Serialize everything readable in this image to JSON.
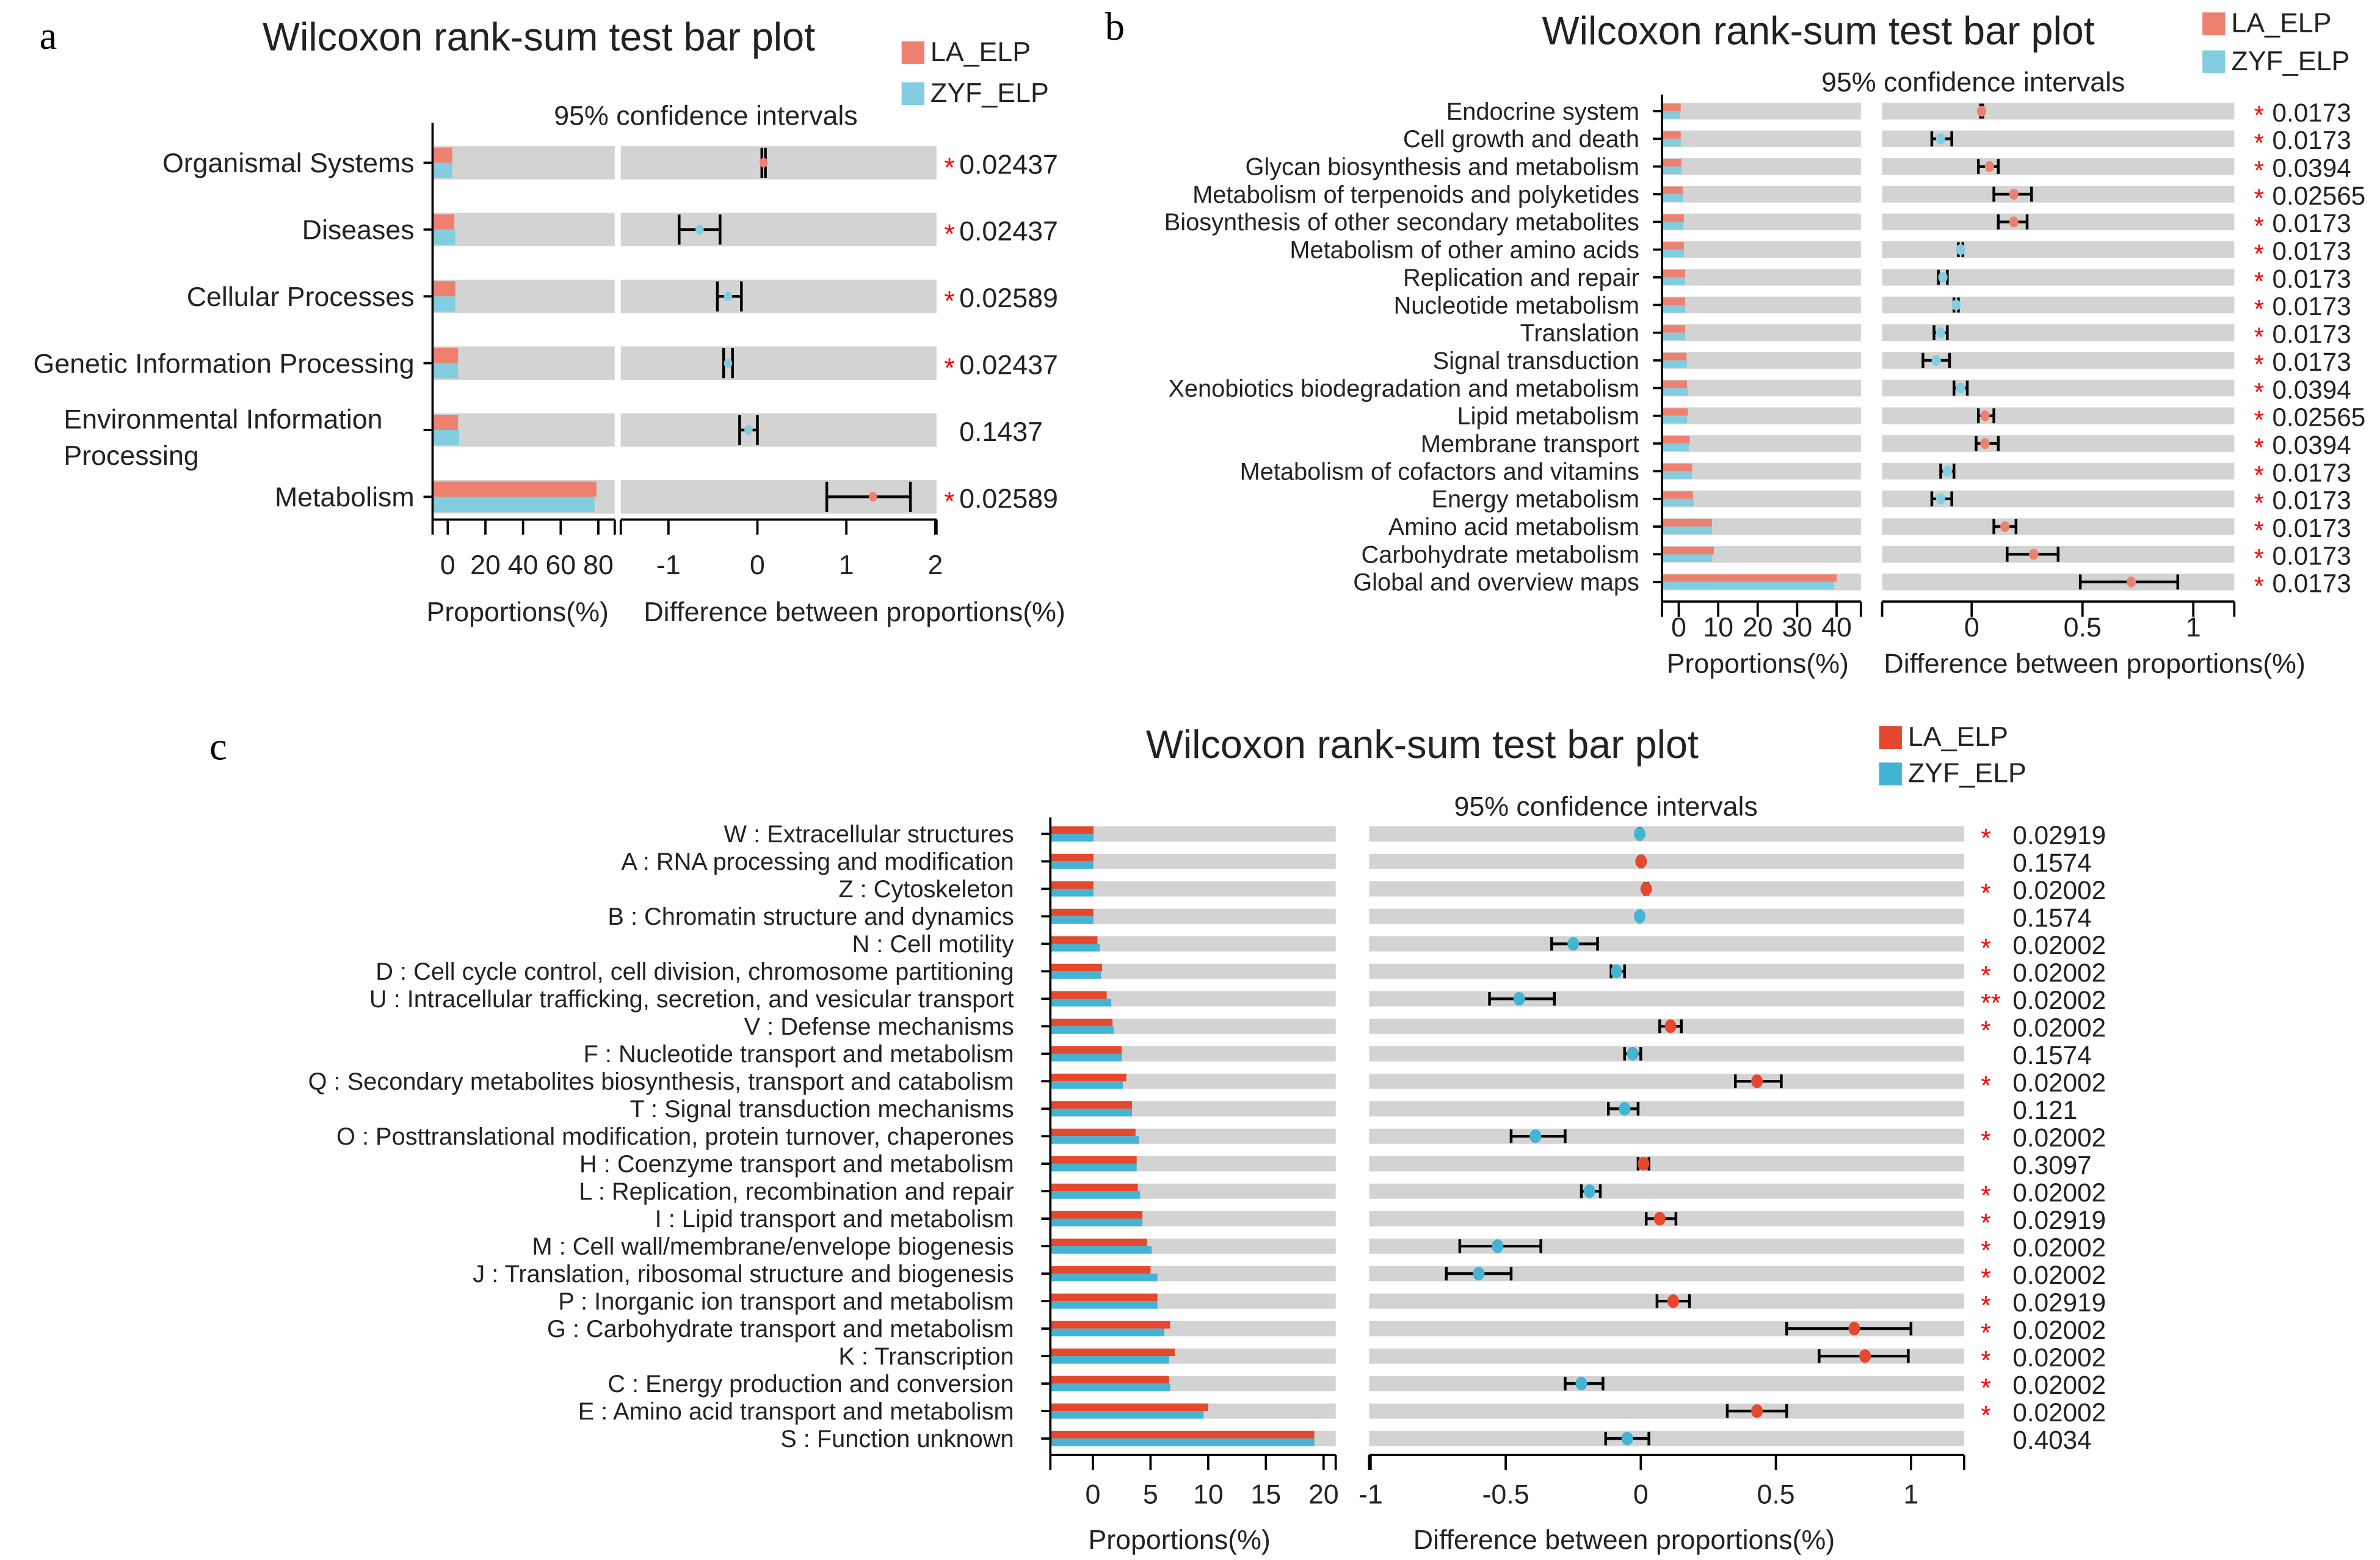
{
  "colors": {
    "a_LA": "#EE8070",
    "a_ZYF": "#82CDE0",
    "b_LA": "#EE8070",
    "b_ZYF": "#82CDE0",
    "c_LA": "#E5492D",
    "c_ZYF": "#44B4D4",
    "track": "#D3D3D3",
    "star": "#FF0000"
  },
  "chart_data": [
    {
      "panel": "a",
      "type": "bar",
      "title": "Wilcoxon rank-sum test bar plot",
      "subtitle": "95% confidence intervals",
      "legend": [
        "LA_ELP",
        "ZYF_ELP"
      ],
      "legend_placement": "top-right",
      "xlabel_left": "Proportions(%)",
      "xlabel_right": "Difference between proportions(%)",
      "ticks_left": [
        "0",
        "20",
        "40",
        "60",
        "80"
      ],
      "ticks_right": [
        "-1",
        "0",
        "1",
        "2"
      ],
      "xlim_right": [
        -1.5,
        2
      ],
      "categories": [
        "Organismal Systems",
        "Diseases",
        "Cellular Processes",
        "Genetic Information Processing",
        "Environmental Information Processing",
        "Metabolism"
      ],
      "LA": [
        2.4,
        3.5,
        4.0,
        5.5,
        5.5,
        79
      ],
      "ZYF": [
        2.4,
        4.0,
        4.0,
        5.5,
        6.0,
        78
      ],
      "diff": [
        0.07,
        -0.65,
        -0.33,
        -0.33,
        -0.1,
        1.3
      ],
      "ci_low": [
        0.05,
        -0.88,
        -0.45,
        -0.38,
        -0.2,
        0.78
      ],
      "ci_high": [
        0.09,
        -0.42,
        -0.18,
        -0.28,
        0.0,
        1.72
      ],
      "higher": [
        "LA",
        "ZYF",
        "ZYF",
        "ZYF",
        "ZYF",
        "LA"
      ],
      "stars": [
        "*",
        "*",
        "*",
        "*",
        "",
        "*"
      ],
      "p": [
        "0.02437",
        "0.02437",
        "0.02589",
        "0.02437",
        "0.1437",
        "0.02589"
      ]
    },
    {
      "panel": "b",
      "type": "bar",
      "title": "Wilcoxon rank-sum test bar plot",
      "subtitle": "95% confidence intervals",
      "legend": [
        "LA_ELP",
        "ZYF_ELP"
      ],
      "legend_placement": "top-right",
      "xlabel_left": "Proportions(%)",
      "xlabel_right": "Difference between proportions(%)",
      "ticks_left": [
        "0",
        "10",
        "20",
        "30",
        "40"
      ],
      "ticks_right": [
        "0",
        "0.5",
        "1"
      ],
      "xlim_right": [
        -0.4,
        1.18
      ],
      "categories": [
        "Endocrine system",
        "Cell growth and death",
        "Glycan biosynthesis and metabolism",
        "Metabolism of terpenoids and polyketides",
        "Biosynthesis of other secondary metabolites",
        "Metabolism of other amino acids",
        "Replication and repair",
        "Nucleotide metabolism",
        "Translation",
        "Signal transduction",
        "Xenobiotics biodegradation and metabolism",
        "Lipid metabolism",
        "Membrane transport",
        "Metabolism of cofactors and vitamins",
        "Energy metabolism",
        "Amino acid metabolism",
        "Carbohydrate metabolism",
        "Global and overview maps"
      ],
      "LA": [
        0.5,
        0.5,
        0.65,
        1.1,
        1.3,
        1.3,
        1.6,
        1.6,
        1.6,
        2.0,
        2.1,
        2.3,
        2.8,
        3.4,
        3.6,
        8.4,
        8.9,
        40
      ],
      "ZYF": [
        0.3,
        0.5,
        0.65,
        1.0,
        1.15,
        1.3,
        1.6,
        1.6,
        1.6,
        2.1,
        2.3,
        2.1,
        2.6,
        3.4,
        3.8,
        8.4,
        8.5,
        39.3
      ],
      "diff": [
        0.045,
        -0.14,
        0.08,
        0.19,
        0.19,
        -0.05,
        -0.13,
        -0.07,
        -0.14,
        -0.16,
        -0.05,
        0.06,
        0.06,
        -0.11,
        -0.14,
        0.15,
        0.28,
        0.72
      ],
      "ci_low": [
        0.04,
        -0.18,
        0.03,
        0.1,
        0.12,
        -0.06,
        -0.15,
        -0.08,
        -0.17,
        -0.22,
        -0.08,
        0.03,
        0.02,
        -0.14,
        -0.18,
        0.1,
        0.16,
        0.49
      ],
      "ci_high": [
        0.05,
        -0.09,
        0.12,
        0.27,
        0.25,
        -0.04,
        -0.11,
        -0.06,
        -0.11,
        -0.1,
        -0.02,
        0.1,
        0.12,
        -0.08,
        -0.09,
        0.2,
        0.39,
        0.93
      ],
      "higher": [
        "LA",
        "ZYF",
        "LA",
        "LA",
        "LA",
        "ZYF",
        "ZYF",
        "ZYF",
        "ZYF",
        "ZYF",
        "ZYF",
        "LA",
        "LA",
        "ZYF",
        "ZYF",
        "LA",
        "LA",
        "LA"
      ],
      "stars": [
        "*",
        "*",
        "*",
        "*",
        "*",
        "*",
        "*",
        "*",
        "*",
        "*",
        "*",
        "*",
        "*",
        "*",
        "*",
        "*",
        "*",
        "*"
      ],
      "p": [
        "0.0173",
        "0.0173",
        "0.0394",
        "0.02565",
        "0.0173",
        "0.0173",
        "0.0173",
        "0.0173",
        "0.0173",
        "0.0173",
        "0.0394",
        "0.02565",
        "0.0394",
        "0.0173",
        "0.0173",
        "0.0173",
        "0.0173",
        "0.0173"
      ]
    },
    {
      "panel": "c",
      "type": "bar",
      "title": "Wilcoxon rank-sum test bar plot",
      "subtitle": "95% confidence intervals",
      "legend": [
        "LA_ELP",
        "ZYF_ELP"
      ],
      "legend_placement": "top-right",
      "xlabel_left": "Proportions(%)",
      "xlabel_right": "Difference between proportions(%)",
      "ticks_left": [
        "0",
        "5",
        "10",
        "15",
        "20"
      ],
      "ticks_right": [
        "-1",
        "-0.5",
        "0",
        "0.5",
        "1"
      ],
      "xlim_right": [
        -1.01,
        1.19
      ],
      "categories": [
        "W : Extracellular structures",
        "A : RNA processing and modification",
        "Z : Cytoskeleton",
        "B : Chromatin structure and dynamics",
        "N : Cell motility",
        "D : Cell cycle control, cell division, chromosome partitioning",
        "U : Intracellular trafficking, secretion, and vesicular transport",
        "V : Defense mechanisms",
        "F : Nucleotide transport and metabolism",
        "Q : Secondary metabolites biosynthesis, transport and catabolism",
        "T : Signal transduction mechanisms",
        "O : Posttranslational modification, protein turnover, chaperones",
        "H : Coenzyme transport and metabolism",
        "L : Replication, recombination and repair",
        "I : Lipid transport and metabolism",
        "M : Cell wall/membrane/envelope biogenesis",
        "J : Translation, ribosomal structure and biogenesis",
        "P : Inorganic ion transport and metabolism",
        "G : Carbohydrate transport and metabolism",
        "K : Transcription",
        "C : Energy production and conversion",
        "E : Amino acid transport and metabolism",
        "S : Function unknown"
      ],
      "LA": [
        0.05,
        0.05,
        0.05,
        0.05,
        0.4,
        0.8,
        1.2,
        1.7,
        2.5,
        2.9,
        3.4,
        3.7,
        3.8,
        3.9,
        4.3,
        4.7,
        5.0,
        5.6,
        6.7,
        7.1,
        6.6,
        10.0,
        19.2
      ],
      "ZYF": [
        0.05,
        0.05,
        0.05,
        0.05,
        0.6,
        0.7,
        1.6,
        1.8,
        2.5,
        2.6,
        3.4,
        4.0,
        3.8,
        4.1,
        4.3,
        5.1,
        5.6,
        5.6,
        6.2,
        6.6,
        6.7,
        9.6,
        19.2
      ],
      "diff": [
        -0.004,
        0.001,
        0.02,
        -0.004,
        -0.25,
        -0.09,
        -0.45,
        0.11,
        -0.03,
        0.43,
        -0.06,
        -0.39,
        0.01,
        -0.19,
        0.07,
        -0.53,
        -0.6,
        0.12,
        0.79,
        0.83,
        -0.22,
        0.43,
        -0.05
      ],
      "ci_low": [
        -0.006,
        -0.002,
        0.015,
        -0.006,
        -0.33,
        -0.11,
        -0.56,
        0.07,
        -0.06,
        0.35,
        -0.12,
        -0.48,
        -0.01,
        -0.22,
        0.02,
        -0.67,
        -0.72,
        0.06,
        0.54,
        0.66,
        -0.28,
        0.32,
        -0.13
      ],
      "ci_high": [
        -0.002,
        0.004,
        0.025,
        -0.002,
        -0.16,
        -0.06,
        -0.32,
        0.15,
        0.0,
        0.52,
        -0.01,
        -0.28,
        0.03,
        -0.15,
        0.13,
        -0.37,
        -0.48,
        0.18,
        1.0,
        0.99,
        -0.14,
        0.54,
        0.03
      ],
      "higher": [
        "ZYF",
        "LA",
        "LA",
        "ZYF",
        "ZYF",
        "ZYF",
        "ZYF",
        "LA",
        "ZYF",
        "LA",
        "ZYF",
        "ZYF",
        "LA",
        "ZYF",
        "LA",
        "ZYF",
        "ZYF",
        "LA",
        "LA",
        "LA",
        "ZYF",
        "LA",
        "ZYF"
      ],
      "stars": [
        "*",
        "",
        "*",
        "",
        "*",
        "*",
        "**",
        "*",
        "",
        "*",
        "",
        "*",
        "",
        "*",
        "*",
        "*",
        "*",
        "*",
        "*",
        "*",
        "*",
        "*",
        ""
      ],
      "p": [
        "0.02919",
        "0.1574",
        "0.02002",
        "0.1574",
        "0.02002",
        "0.02002",
        "0.02002",
        "0.02002",
        "0.1574",
        "0.02002",
        "0.121",
        "0.02002",
        "0.3097",
        "0.02002",
        "0.02919",
        "0.02002",
        "0.02002",
        "0.02919",
        "0.02002",
        "0.02002",
        "0.02002",
        "0.02002",
        "0.4034"
      ]
    }
  ]
}
